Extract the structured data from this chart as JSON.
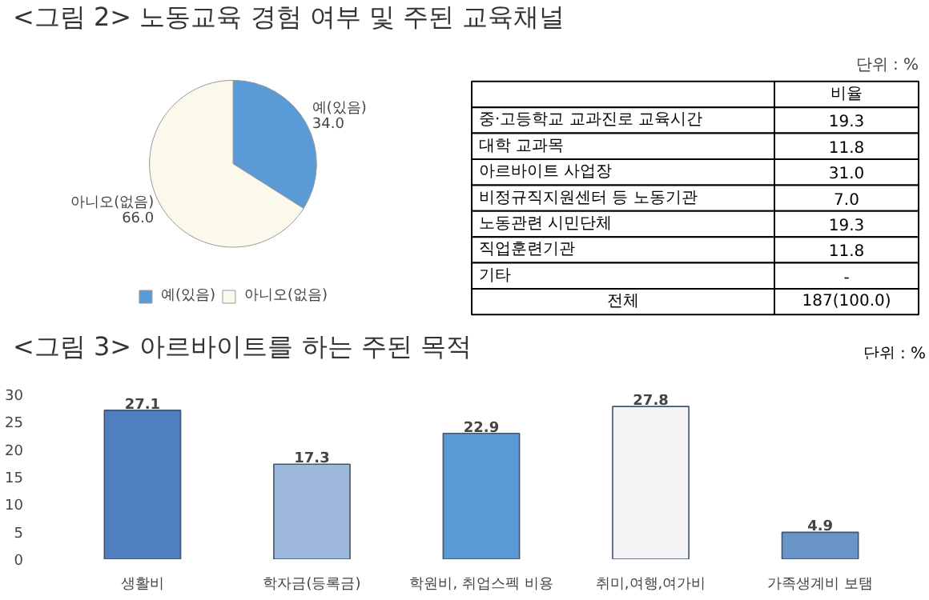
{
  "chart_data": [
    {
      "type": "pie",
      "title": "<그림 2> 노동교육 경험 여부 및 주된 교육채널",
      "categories": [
        "예(있음)",
        "아니오(없음)"
      ],
      "values": [
        34.0,
        66.0
      ],
      "colors": [
        "#5b9bd5",
        "#fbf8ec"
      ],
      "value_labels": [
        "34.0",
        "66.0"
      ],
      "legend": "bottom"
    },
    {
      "type": "other",
      "ylabel": "비율",
      "annotations": [
        "단위 : %"
      ],
      "categories": [
        "중·고등학교 교과진로 교육시간",
        "대학 교과목",
        "아르바이트 사업장",
        "비정규직지원센터 등 노동기관",
        "노동관련 시민단체",
        "직업훈련기관",
        "기타",
        "전체"
      ],
      "values": [
        19.3,
        11.8,
        31.0,
        7.0,
        19.3,
        11.8,
        null,
        187
      ],
      "value_labels": [
        "19.3",
        "11.8",
        "31.0",
        "7.0",
        "19.3",
        "11.8",
        "-",
        "187(100.0)"
      ]
    },
    {
      "type": "bar",
      "title": "<그림 3> 아르바이트를 하는 주된 목적",
      "annotations": [
        "단위 : %"
      ],
      "categories": [
        "생활비",
        "학자금(등록금)",
        "학원비, 취업스펙 비용",
        "취미,여행,여가비",
        "가족생계비 보탬"
      ],
      "values": [
        27.1,
        17.3,
        22.9,
        27.8,
        4.9
      ],
      "colors": [
        "#4f7fbf",
        "#9db8dc",
        "#5b9bd5",
        "#f4f4f4",
        "#6a95c8"
      ],
      "ylim": [
        0,
        30
      ],
      "yticks": [
        0,
        5,
        10,
        15,
        20,
        25,
        30
      ],
      "grid": false,
      "data_labels": true
    }
  ]
}
